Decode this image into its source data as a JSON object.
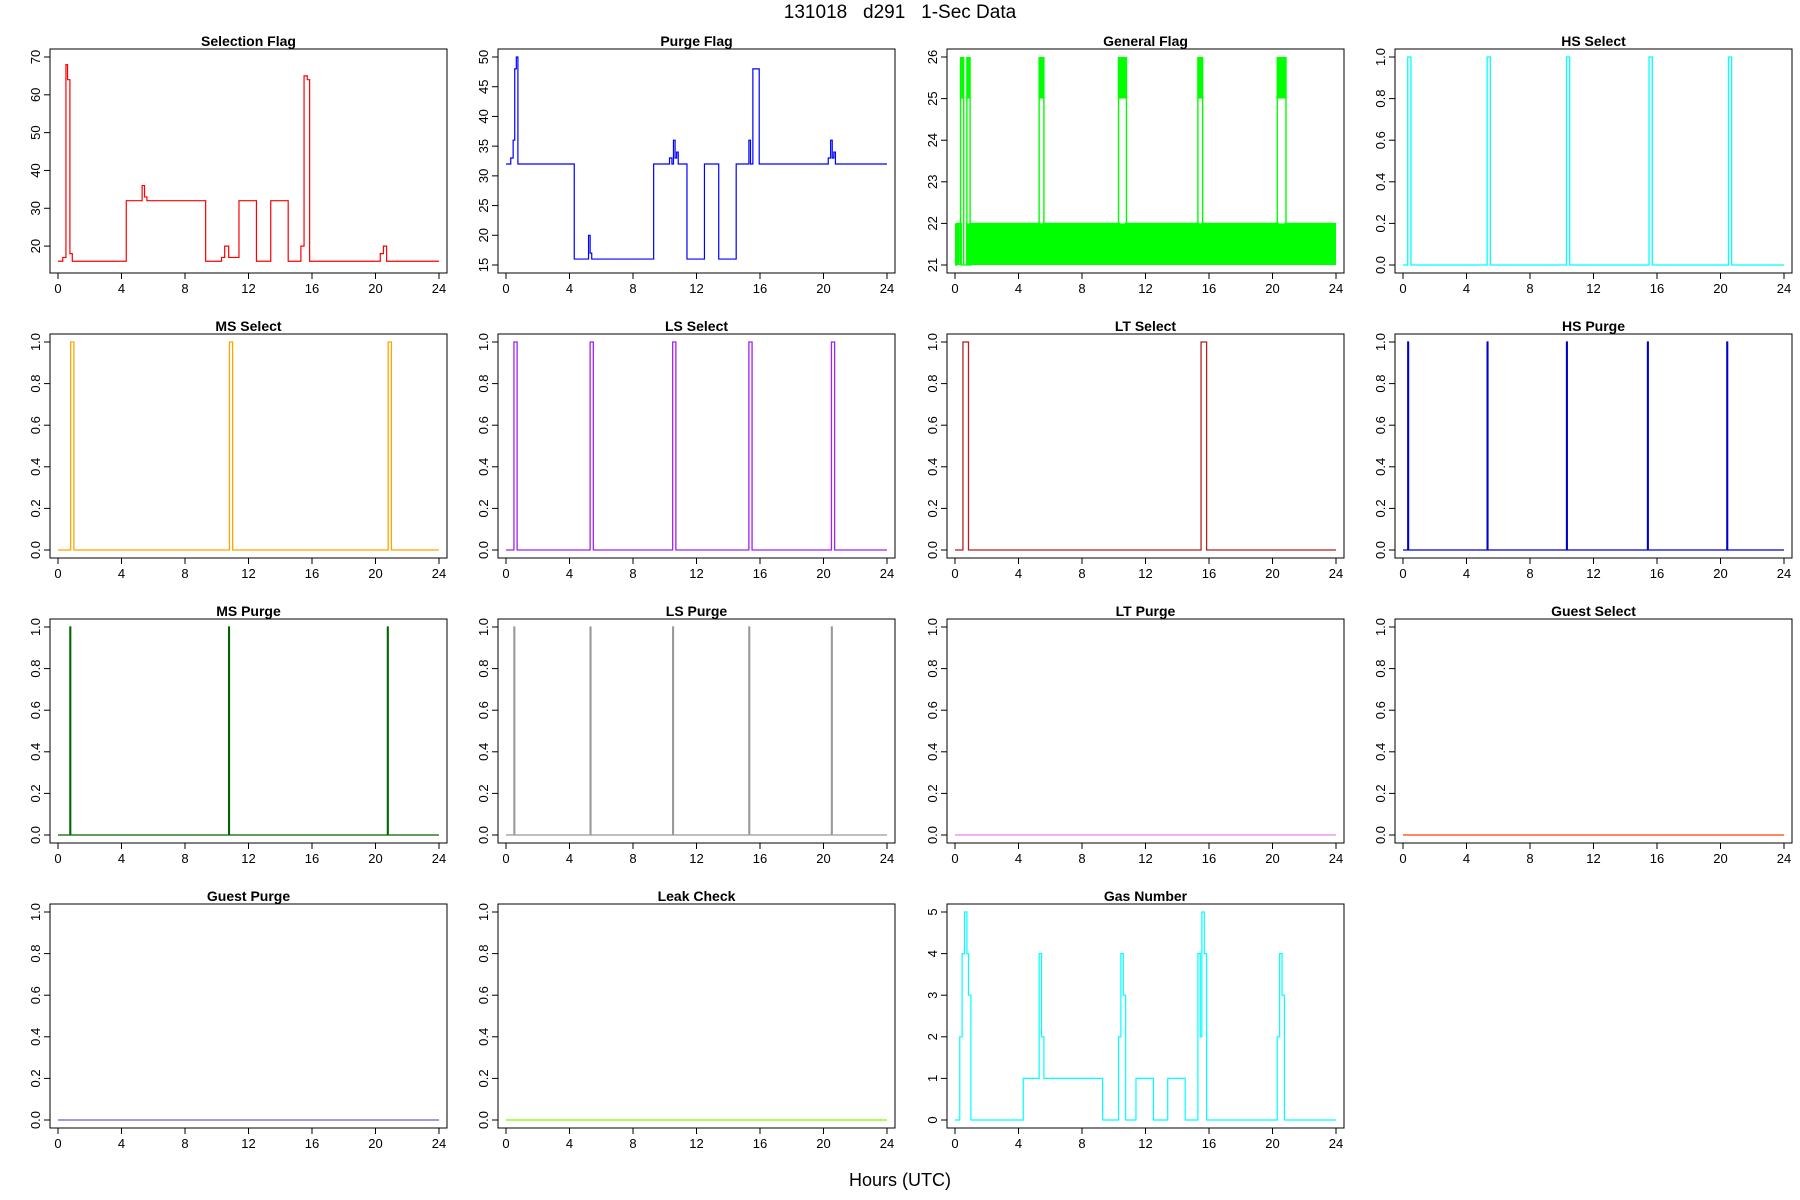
{
  "title": "131018   d291   1-Sec Data",
  "xlabel": "Hours (UTC)",
  "x_ticks": [
    0,
    4,
    8,
    12,
    16,
    20,
    24
  ],
  "chart_data": [
    {
      "type": "line",
      "title": "Selection Flag",
      "color": "#ff0000",
      "ylim": [
        15,
        70
      ],
      "yticks": [
        20,
        30,
        40,
        50,
        60,
        70
      ],
      "x": [
        0,
        0.3,
        0.3,
        0.5,
        0.5,
        0.6,
        0.6,
        0.75,
        0.75,
        0.9,
        0.9,
        4.3,
        4.3,
        5.3,
        5.3,
        5.45,
        5.45,
        5.6,
        5.6,
        9.3,
        9.3,
        10.3,
        10.3,
        10.5,
        10.5,
        10.75,
        10.75,
        11.4,
        11.4,
        12.5,
        12.5,
        13.4,
        13.4,
        14.5,
        14.5,
        15.3,
        15.3,
        15.5,
        15.5,
        15.7,
        15.7,
        15.85,
        15.85,
        20.3,
        20.3,
        20.5,
        20.5,
        20.7,
        20.7,
        24
      ],
      "y": [
        16,
        16,
        17,
        17,
        68,
        68,
        64,
        64,
        18,
        18,
        16,
        16,
        32,
        32,
        36,
        36,
        33,
        33,
        32,
        32,
        16,
        16,
        17,
        17,
        20,
        20,
        17,
        17,
        32,
        32,
        16,
        16,
        32,
        32,
        16,
        16,
        20,
        20,
        65,
        65,
        64,
        64,
        16,
        16,
        18,
        18,
        20,
        20,
        16,
        16
      ]
    },
    {
      "type": "line",
      "title": "Purge Flag",
      "color": "#0000ff",
      "ylim": [
        15,
        50
      ],
      "yticks": [
        15,
        20,
        25,
        30,
        35,
        40,
        45,
        50
      ],
      "x": [
        0,
        0.3,
        0.3,
        0.45,
        0.45,
        0.55,
        0.55,
        0.65,
        0.65,
        0.75,
        0.75,
        0.85,
        0.85,
        4.3,
        4.3,
        5.2,
        5.2,
        5.3,
        5.3,
        5.4,
        5.4,
        5.5,
        5.5,
        9.3,
        9.3,
        10.3,
        10.3,
        10.45,
        10.45,
        10.55,
        10.55,
        10.65,
        10.65,
        10.75,
        10.75,
        10.85,
        10.85,
        11.4,
        11.4,
        12.5,
        12.5,
        13.4,
        13.4,
        14.5,
        14.5,
        15.3,
        15.3,
        15.4,
        15.4,
        15.55,
        15.55,
        15.95,
        15.95,
        20.3,
        20.3,
        20.45,
        20.45,
        20.55,
        20.55,
        20.65,
        20.65,
        20.75,
        20.75,
        24
      ],
      "y": [
        32,
        32,
        33,
        33,
        36,
        36,
        48,
        48,
        50,
        50,
        32,
        32,
        32,
        32,
        16,
        16,
        20,
        20,
        17,
        17,
        16,
        16,
        16,
        16,
        32,
        32,
        33,
        33,
        32,
        32,
        36,
        36,
        33,
        33,
        34,
        34,
        32,
        32,
        16,
        16,
        32,
        32,
        16,
        16,
        32,
        32,
        36,
        36,
        32,
        32,
        48,
        48,
        32,
        32,
        33,
        33,
        36,
        36,
        33,
        33,
        34,
        34,
        32,
        32
      ]
    },
    {
      "type": "line",
      "title": "General Flag",
      "color": "#00ff00",
      "ylim": [
        21,
        26
      ],
      "yticks": [
        21,
        22,
        23,
        24,
        25,
        26
      ],
      "x": [
        0,
        0.1,
        0.1,
        0.4,
        0.4,
        1.0,
        1.0,
        24
      ],
      "y": [
        21,
        21,
        22,
        22,
        21,
        21,
        22,
        22
      ],
      "fill_bands": [
        [
          0,
          0.3,
          21,
          22
        ],
        [
          0.7,
          24,
          21,
          22
        ]
      ],
      "spikes": [
        {
          "x0": 0.35,
          "x1": 0.55,
          "dense": [
            0.35,
            0.55
          ]
        },
        {
          "x0": 0.75,
          "x1": 0.95,
          "dense": [
            0.75,
            0.95
          ]
        },
        {
          "x0": 5.3,
          "x1": 5.6,
          "dense": [
            5.3,
            5.6
          ]
        },
        {
          "x0": 10.3,
          "x1": 10.8,
          "dense": [
            10.3,
            10.8
          ]
        },
        {
          "x0": 15.3,
          "x1": 15.6,
          "dense": [
            15.3,
            15.6
          ]
        },
        {
          "x0": 20.3,
          "x1": 20.85,
          "dense": [
            20.3,
            20.85
          ]
        }
      ]
    },
    {
      "type": "line",
      "title": "HS Select",
      "color": "#00ffff",
      "ylim": [
        0,
        1
      ],
      "yticks": [
        0.0,
        0.2,
        0.4,
        0.6,
        0.8,
        1.0
      ],
      "pulses": [
        [
          0.3,
          0.5
        ],
        [
          5.3,
          5.5
        ],
        [
          10.3,
          10.5
        ],
        [
          15.5,
          15.7
        ],
        [
          20.5,
          20.7
        ]
      ]
    },
    {
      "type": "line",
      "title": "MS Select",
      "color": "#ffa500",
      "ylim": [
        0,
        1
      ],
      "yticks": [
        0.0,
        0.2,
        0.4,
        0.6,
        0.8,
        1.0
      ],
      "pulses": [
        [
          0.8,
          1.0
        ],
        [
          10.8,
          11.0
        ],
        [
          20.8,
          21.0
        ]
      ]
    },
    {
      "type": "line",
      "title": "LS Select",
      "color": "#a020f0",
      "ylim": [
        0,
        1
      ],
      "yticks": [
        0.0,
        0.2,
        0.4,
        0.6,
        0.8,
        1.0
      ],
      "pulses": [
        [
          0.5,
          0.7
        ],
        [
          5.3,
          5.5
        ],
        [
          10.5,
          10.7
        ],
        [
          15.3,
          15.5
        ],
        [
          20.5,
          20.7
        ]
      ]
    },
    {
      "type": "line",
      "title": "LT Select",
      "color": "#b22222",
      "ylim": [
        0,
        1
      ],
      "yticks": [
        0.0,
        0.2,
        0.4,
        0.6,
        0.8,
        1.0
      ],
      "pulses": [
        [
          0.5,
          0.85
        ],
        [
          15.5,
          15.85
        ]
      ]
    },
    {
      "type": "line",
      "title": "HS Purge",
      "color": "#0000cd",
      "ylim": [
        0,
        1
      ],
      "yticks": [
        0.0,
        0.2,
        0.4,
        0.6,
        0.8,
        1.0
      ],
      "pulses": [
        [
          0.3,
          0.35
        ],
        [
          5.3,
          5.35
        ],
        [
          10.3,
          10.35
        ],
        [
          15.4,
          15.45
        ],
        [
          20.4,
          20.45
        ]
      ]
    },
    {
      "type": "line",
      "title": "MS Purge",
      "color": "#006400",
      "ylim": [
        0,
        1
      ],
      "yticks": [
        0.0,
        0.2,
        0.4,
        0.6,
        0.8,
        1.0
      ],
      "pulses": [
        [
          0.75,
          0.8
        ],
        [
          10.75,
          10.8
        ],
        [
          20.75,
          20.8
        ]
      ]
    },
    {
      "type": "line",
      "title": "LS Purge",
      "color": "#999999",
      "ylim": [
        0,
        1
      ],
      "yticks": [
        0.0,
        0.2,
        0.4,
        0.6,
        0.8,
        1.0
      ],
      "pulses": [
        [
          0.5,
          0.55
        ],
        [
          5.3,
          5.35
        ],
        [
          10.5,
          10.55
        ],
        [
          15.3,
          15.35
        ],
        [
          20.5,
          20.55
        ]
      ]
    },
    {
      "type": "line",
      "title": "LT Purge",
      "color": "#ee82ee",
      "ylim": [
        0,
        1
      ],
      "yticks": [
        0.0,
        0.2,
        0.4,
        0.6,
        0.8,
        1.0
      ],
      "pulses": []
    },
    {
      "type": "line",
      "title": "Guest Select",
      "color": "#ff4500",
      "ylim": [
        0,
        1
      ],
      "yticks": [
        0.0,
        0.2,
        0.4,
        0.6,
        0.8,
        1.0
      ],
      "pulses": []
    },
    {
      "type": "line",
      "title": "Guest Purge",
      "color": "#6a5acd",
      "ylim": [
        0,
        1
      ],
      "yticks": [
        0.0,
        0.2,
        0.4,
        0.6,
        0.8,
        1.0
      ],
      "pulses": []
    },
    {
      "type": "line",
      "title": "Leak Check",
      "color": "#7cfc00",
      "ylim": [
        0,
        1
      ],
      "yticks": [
        0.0,
        0.2,
        0.4,
        0.6,
        0.8,
        1.0
      ],
      "pulses": []
    },
    {
      "type": "line",
      "title": "Gas Number",
      "color": "#00ffff",
      "ylim": [
        0,
        5
      ],
      "yticks": [
        0,
        1,
        2,
        3,
        4,
        5
      ],
      "x": [
        0,
        0.3,
        0.3,
        0.45,
        0.45,
        0.6,
        0.6,
        0.75,
        0.75,
        0.85,
        0.85,
        1.0,
        1.0,
        4.3,
        4.3,
        5.3,
        5.3,
        5.45,
        5.45,
        5.6,
        5.6,
        9.3,
        9.3,
        10.3,
        10.3,
        10.45,
        10.45,
        10.6,
        10.6,
        10.75,
        10.75,
        11.4,
        11.4,
        12.5,
        12.5,
        13.4,
        13.4,
        14.5,
        14.5,
        15.3,
        15.3,
        15.45,
        15.45,
        15.55,
        15.55,
        15.7,
        15.7,
        15.85,
        15.85,
        20.3,
        20.3,
        20.45,
        20.45,
        20.6,
        20.6,
        20.75,
        20.75,
        20.85,
        20.85,
        24
      ],
      "y": [
        0,
        0,
        2,
        2,
        4,
        4,
        5,
        5,
        4,
        4,
        3,
        3,
        0,
        0,
        1,
        1,
        4,
        4,
        2,
        2,
        1,
        1,
        0,
        0,
        2,
        2,
        4,
        4,
        3,
        3,
        0,
        0,
        1,
        1,
        0,
        0,
        1,
        1,
        0,
        0,
        4,
        4,
        2,
        2,
        5,
        5,
        4,
        4,
        0,
        0,
        2,
        2,
        4,
        4,
        3,
        3,
        0,
        0,
        0,
        0
      ]
    }
  ]
}
